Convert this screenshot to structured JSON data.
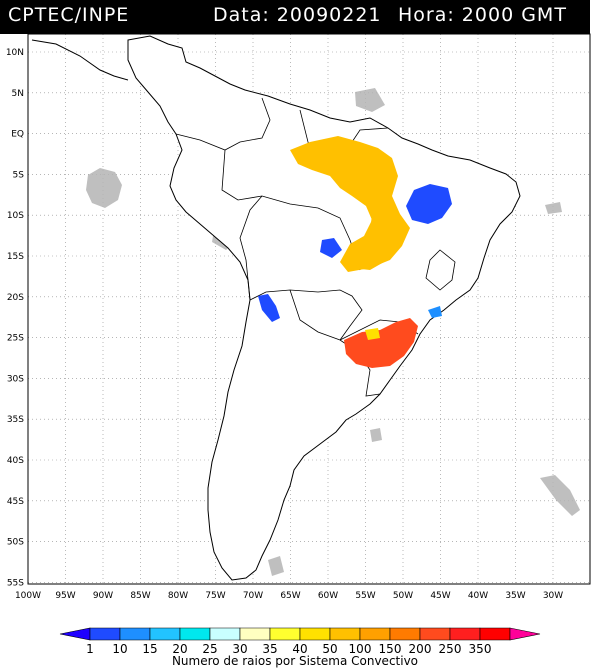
{
  "header": {
    "source": "CPTEC/INPE",
    "date_text": "Data: 20090221",
    "time_text": "Hora: 2000 GMT"
  },
  "axes": {
    "lat_labels": [
      "10N",
      "5N",
      "EQ",
      "5S",
      "10S",
      "15S",
      "20S",
      "25S",
      "30S",
      "35S",
      "40S",
      "45S",
      "50S",
      "55S"
    ],
    "lon_labels": [
      "100W",
      "95W",
      "90W",
      "85W",
      "80W",
      "75W",
      "70W",
      "65W",
      "60W",
      "55W",
      "50W",
      "45W",
      "40W",
      "35W",
      "30W"
    ],
    "lat_range": [
      -56,
      13
    ],
    "lon_range": [
      -100,
      -27
    ]
  },
  "legend": {
    "ticks": [
      "1",
      "10",
      "15",
      "20",
      "25",
      "30",
      "35",
      "40",
      "50",
      "100",
      "150",
      "200",
      "250",
      "350"
    ],
    "colors": [
      "#1f00ff",
      "#1f4bff",
      "#1e8fff",
      "#22c3ff",
      "#00e8ee",
      "#c9ffff",
      "#ffffc0",
      "#ffff2f",
      "#ffe100",
      "#ffc000",
      "#ffa000",
      "#ff7b00",
      "#ff4b1e",
      "#ff1f1f",
      "#ff0000",
      "#ff0099"
    ],
    "caption": "Numero de raios por Sistema Convectivo"
  },
  "map": {
    "colors": {
      "land_outline": "#000000",
      "grid": "#8c8c8c",
      "cloud": "#b4b4b4",
      "orange_cells": "#ff4b1e",
      "yellow_cells": "#ffc000",
      "blue_cells": "#1f4bff"
    }
  }
}
